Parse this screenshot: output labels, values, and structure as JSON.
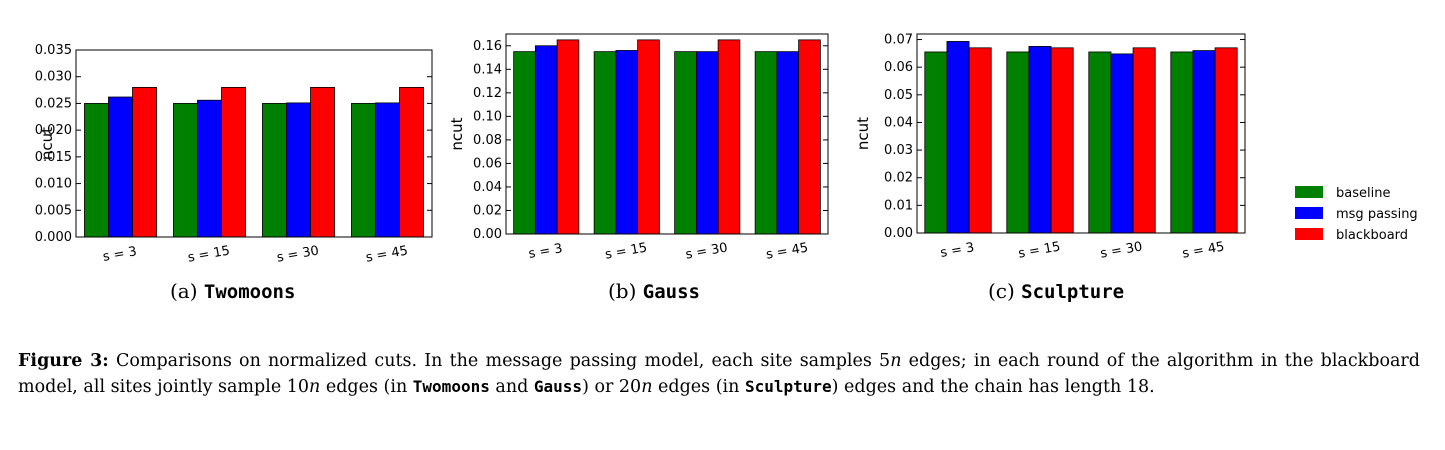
{
  "colors": {
    "baseline": "#008000",
    "msg_passing": "#0000ff",
    "blackboard": "#ff0000"
  },
  "legend": [
    "baseline",
    "msg passing",
    "blackboard"
  ],
  "subcaptions": [
    {
      "label": "(a)",
      "name": "Twomoons"
    },
    {
      "label": "(b)",
      "name": "Gauss"
    },
    {
      "label": "(c)",
      "name": "Sculpture"
    }
  ],
  "caption": {
    "figure_label": "Figure 3:",
    "part1": "Comparisons on normalized cuts. In the message passing model, each site samples 5",
    "var_n1": "n",
    "part2": " edges; in each round of the algorithm in the blackboard model, all sites jointly sample 10",
    "var_n2": "n",
    "part3": " edges (in ",
    "mono1": "Twomoons",
    "part4": " and ",
    "mono2": "Gauss",
    "part5": ") or 20",
    "var_n3": "n",
    "part6": " edges (in ",
    "mono3": "Sculpture",
    "part7": ") edges and the chain has length 18."
  },
  "chart_data": [
    {
      "type": "bar",
      "ylabel": "ncut",
      "categories": [
        "s = 3",
        "s = 15",
        "s = 30",
        "s = 45"
      ],
      "ylim": [
        0,
        0.035
      ],
      "yticks": [
        "0.000",
        "0.005",
        "0.010",
        "0.015",
        "0.020",
        "0.025",
        "0.030",
        "0.035"
      ],
      "series": [
        {
          "name": "baseline",
          "values": [
            0.025,
            0.025,
            0.025,
            0.025
          ]
        },
        {
          "name": "msg passing",
          "values": [
            0.0262,
            0.0256,
            0.0251,
            0.0251
          ]
        },
        {
          "name": "blackboard",
          "values": [
            0.028,
            0.028,
            0.028,
            0.028
          ]
        }
      ]
    },
    {
      "type": "bar",
      "ylabel": "ncut",
      "categories": [
        "s = 3",
        "s = 15",
        "s = 30",
        "s = 45"
      ],
      "ylim": [
        0,
        0.17
      ],
      "yticks": [
        "0.00",
        "0.02",
        "0.04",
        "0.06",
        "0.08",
        "0.10",
        "0.12",
        "0.14",
        "0.16"
      ],
      "series": [
        {
          "name": "baseline",
          "values": [
            0.155,
            0.155,
            0.155,
            0.155
          ]
        },
        {
          "name": "msg passing",
          "values": [
            0.16,
            0.156,
            0.155,
            0.155
          ]
        },
        {
          "name": "blackboard",
          "values": [
            0.165,
            0.165,
            0.165,
            0.165
          ]
        }
      ]
    },
    {
      "type": "bar",
      "ylabel": "ncut",
      "categories": [
        "s = 3",
        "s = 15",
        "s = 30",
        "s = 45"
      ],
      "ylim": [
        0,
        0.072
      ],
      "yticks": [
        "0.00",
        "0.01",
        "0.02",
        "0.03",
        "0.04",
        "0.05",
        "0.06",
        "0.07"
      ],
      "series": [
        {
          "name": "baseline",
          "values": [
            0.0655,
            0.0655,
            0.0655,
            0.0655
          ]
        },
        {
          "name": "msg passing",
          "values": [
            0.0693,
            0.0675,
            0.0648,
            0.066
          ]
        },
        {
          "name": "blackboard",
          "values": [
            0.067,
            0.067,
            0.067,
            0.067
          ]
        }
      ]
    }
  ]
}
